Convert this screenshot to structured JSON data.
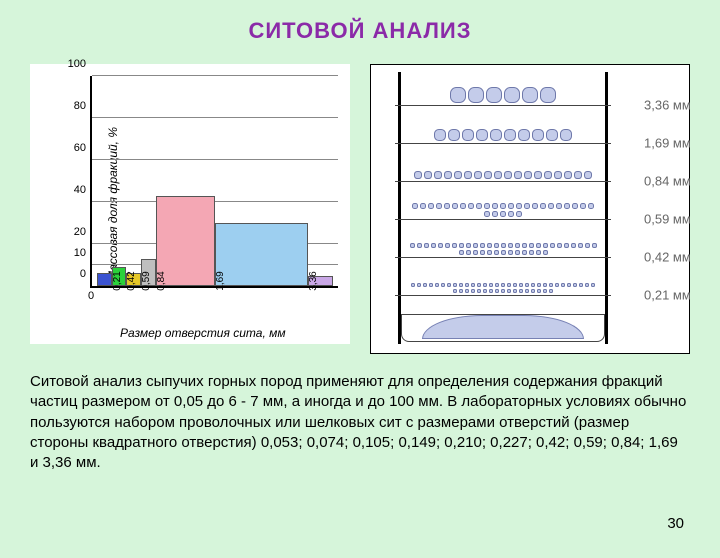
{
  "title": {
    "text": "СИТОВОЙ АНАЛИЗ",
    "color": "#8b2aa8",
    "fontsize": 22
  },
  "chart": {
    "type": "bar",
    "ylabel": "Массовая доля фракций, %",
    "xlabel": "Размер отверстия сита, мм",
    "label_fontsize": 12,
    "tick_fontsize": 11,
    "background": "#ffffff",
    "grid_color": "#888888",
    "ylim": [
      0,
      100
    ],
    "yticks": [
      0,
      10,
      20,
      40,
      60,
      80,
      100
    ],
    "xticks": [
      "0,21",
      "0,42",
      "0,59",
      "0,84",
      "1,69",
      "3,36"
    ],
    "xzero": "0",
    "bars": [
      {
        "x": 0.02,
        "w": 0.06,
        "h": 6,
        "color": "#3b53d1"
      },
      {
        "x": 0.08,
        "w": 0.06,
        "h": 9,
        "color": "#2bd13b"
      },
      {
        "x": 0.14,
        "w": 0.06,
        "h": 6,
        "color": "#e6c828"
      },
      {
        "x": 0.2,
        "w": 0.06,
        "h": 13,
        "color": "#bfbfbf"
      },
      {
        "x": 0.26,
        "w": 0.24,
        "h": 43,
        "color": "#f4a7b4"
      },
      {
        "x": 0.5,
        "w": 0.38,
        "h": 30,
        "color": "#9dcff0"
      },
      {
        "x": 0.88,
        "w": 0.1,
        "h": 5,
        "color": "#c9a7e6"
      }
    ]
  },
  "sieve": {
    "background": "#ffffff",
    "sizes": [
      "3,36 мм",
      "1,69 мм",
      "0,84 мм",
      "0,59 мм",
      "0,42 мм",
      "0,21 мм"
    ],
    "label_color": "#666666",
    "label_fontsize": 13,
    "particle_color": "#c4ccea",
    "particle_border": "#6e78aa",
    "rows": [
      {
        "y": 0.12,
        "count": 6,
        "size": 14
      },
      {
        "y": 0.26,
        "count": 10,
        "size": 10
      },
      {
        "y": 0.4,
        "count": 18,
        "size": 6
      },
      {
        "y": 0.54,
        "count": 28,
        "size": 4
      },
      {
        "y": 0.68,
        "count": 40,
        "size": 3
      },
      {
        "y": 0.82,
        "count": 48,
        "size": 2
      }
    ]
  },
  "body_text": "Ситовой анализ сыпучих горных пород применяют для определения содержания фракций частиц размером от 0,05 до 6 - 7 мм, а иногда и до 100 мм. В лабораторных условиях обычно пользуются набором проволочных или шелковых сит с размерами отверстий (размер стороны квадратного отверстия) 0,053; 0,074; 0,105; 0,149; 0,210; 0,227; 0,42; 0,59; 0,84; 1,69 и 3,36 мм.",
  "page_number": "30"
}
